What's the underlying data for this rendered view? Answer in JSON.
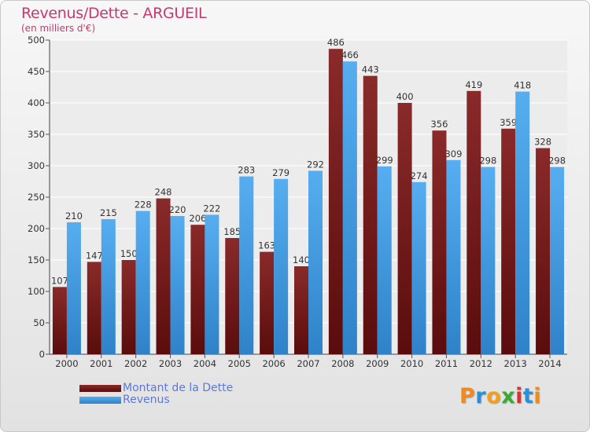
{
  "chart_data": {
    "type": "bar",
    "title": "Revenus/Dette - ARGUEIL",
    "subtitle": "(en milliers d'€)",
    "categories": [
      "2000",
      "2001",
      "2002",
      "2003",
      "2004",
      "2005",
      "2006",
      "2007",
      "2008",
      "2009",
      "2010",
      "2011",
      "2012",
      "2013",
      "2014"
    ],
    "series": [
      {
        "name": "Montant de la Dette",
        "color": "#7a1a1a",
        "values": [
          107,
          147,
          150,
          248,
          206,
          185,
          163,
          140,
          486,
          443,
          400,
          356,
          419,
          359,
          328
        ],
        "labels": [
          "107",
          "147",
          "150",
          "248",
          "206",
          "185",
          "163",
          "140",
          "486",
          "443",
          "400",
          "356",
          "419",
          "359",
          "328"
        ]
      },
      {
        "name": "Revenus",
        "color": "#4a9fe0",
        "values": [
          210,
          215,
          228,
          220,
          222,
          283,
          279,
          292,
          466,
          299,
          274,
          309,
          298,
          418,
          298
        ],
        "labels": [
          "210",
          "215",
          "228",
          "220",
          "222",
          "283",
          "279",
          "292",
          "466",
          "299",
          "274",
          "309",
          "298",
          "418",
          "298"
        ]
      }
    ],
    "ylim": [
      0,
      500
    ],
    "yticks": [
      0,
      50,
      100,
      150,
      200,
      250,
      300,
      350,
      400,
      450,
      500
    ],
    "grid": true,
    "legend_position": "bottom-left"
  },
  "logo": {
    "letters": [
      "P",
      "r",
      "o",
      "x",
      "i",
      "t",
      "i"
    ],
    "colors": [
      "#f08a1c",
      "#2a8fd6",
      "#f0a020",
      "#3aaa35",
      "#e0302a",
      "#2a8fd6",
      "#f08a1c"
    ]
  }
}
